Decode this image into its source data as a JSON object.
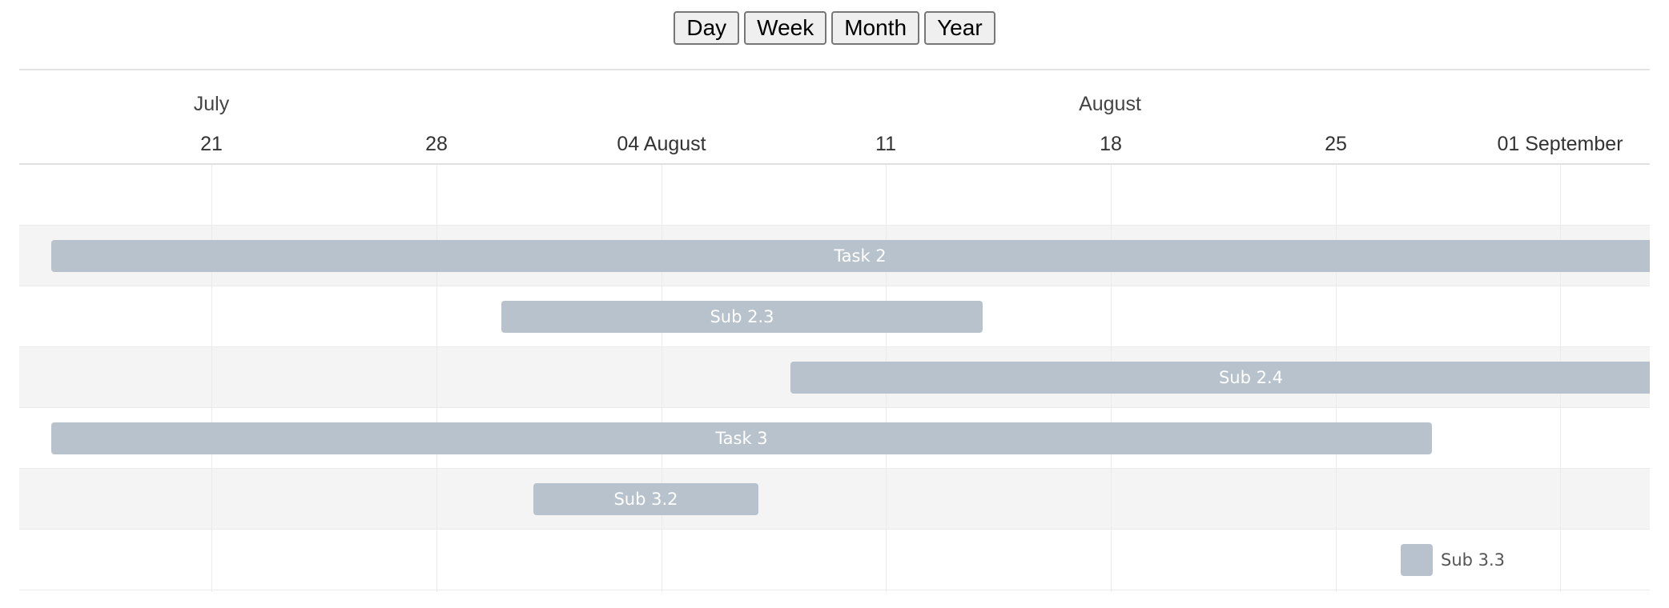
{
  "toolbar": {
    "buttons": [
      "Day",
      "Week",
      "Month",
      "Year"
    ]
  },
  "timeline": {
    "months": [
      "July",
      "August"
    ],
    "weeks": [
      "21",
      "28",
      "04 August",
      "11",
      "18",
      "25",
      "01 September"
    ]
  },
  "tasks": [
    {
      "name": "",
      "row": 0
    },
    {
      "name": "Task 2",
      "row": 1
    },
    {
      "name": "Sub 2.3",
      "row": 2
    },
    {
      "name": "Sub 2.4",
      "row": 3
    },
    {
      "name": "Task 3",
      "row": 4
    },
    {
      "name": "Sub 3.2",
      "row": 5
    },
    {
      "name": "Sub 3.3",
      "row": 6
    }
  ],
  "colors": {
    "bar": "#b8c2cc",
    "row_alt": "#f4f4f4",
    "grid": "#ebebeb"
  }
}
